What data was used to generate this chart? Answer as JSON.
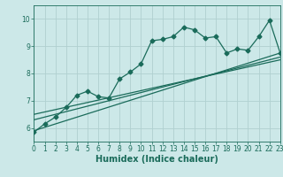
{
  "xlabel": "Humidex (Indice chaleur)",
  "xlim": [
    0,
    23
  ],
  "ylim": [
    5.5,
    10.5
  ],
  "yticks": [
    6,
    7,
    8,
    9,
    10
  ],
  "xticks": [
    0,
    1,
    2,
    3,
    4,
    5,
    6,
    7,
    8,
    9,
    10,
    11,
    12,
    13,
    14,
    15,
    16,
    17,
    18,
    19,
    20,
    21,
    22,
    23
  ],
  "bg_color": "#cce8e8",
  "grid_color": "#b0d0d0",
  "line_color": "#1a6b5a",
  "line_width": 0.9,
  "marker": "D",
  "marker_size": 2.5,
  "series1_x": [
    0,
    1,
    2,
    3,
    4,
    5,
    6,
    7,
    8,
    9,
    10,
    11,
    12,
    13,
    14,
    15,
    16,
    17,
    18,
    19,
    20,
    21,
    22,
    23
  ],
  "series1_y": [
    5.85,
    6.15,
    6.4,
    6.75,
    7.2,
    7.35,
    7.15,
    7.1,
    7.8,
    8.05,
    8.35,
    9.2,
    9.25,
    9.35,
    9.7,
    9.6,
    9.3,
    9.35,
    8.75,
    8.9,
    8.85,
    9.35,
    9.95,
    8.75
  ],
  "series2_x": [
    0,
    23
  ],
  "series2_y": [
    5.9,
    8.75
  ],
  "series3_x": [
    0,
    23
  ],
  "series3_y": [
    6.3,
    8.6
  ],
  "series4_x": [
    0,
    23
  ],
  "series4_y": [
    6.5,
    8.5
  ],
  "font_color": "#1a6b5a",
  "tick_fontsize": 5.5,
  "xlabel_fontsize": 7.0
}
